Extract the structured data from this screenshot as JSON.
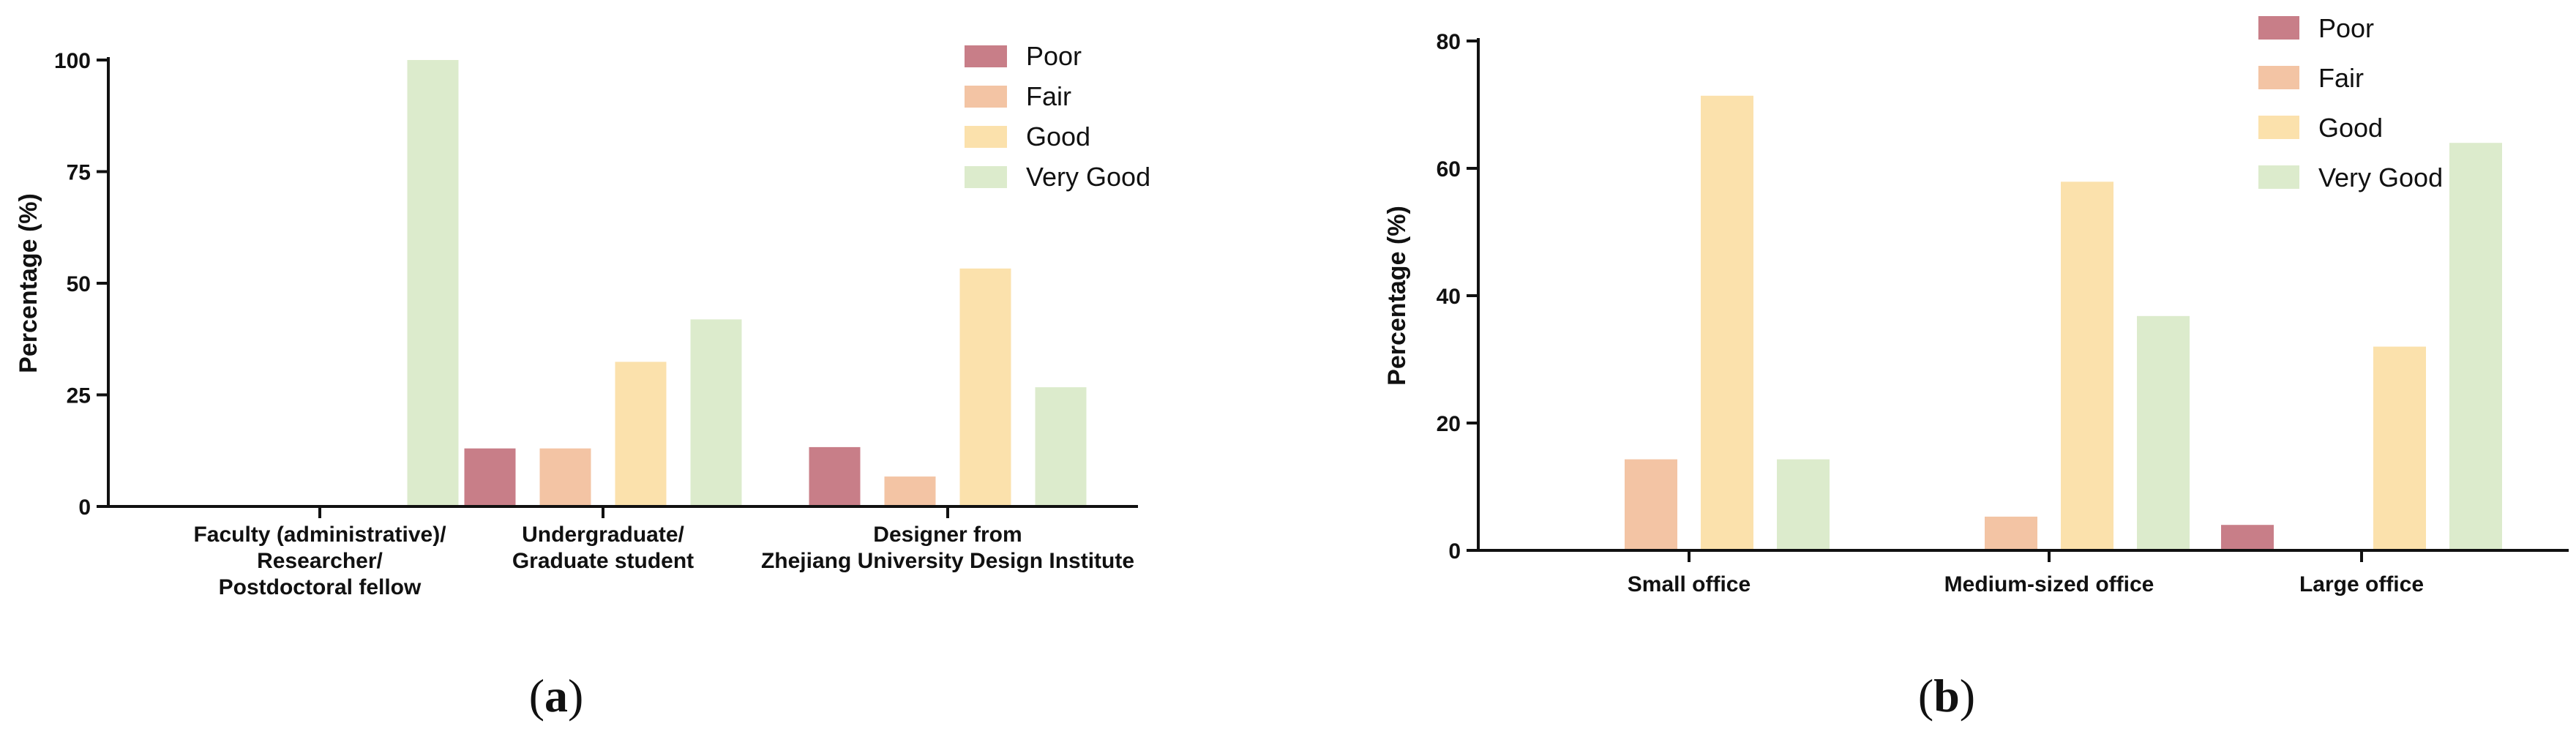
{
  "colors": {
    "Poor": "#c87e88",
    "Fair": "#f3c4a4",
    "Good": "#fbe1ac",
    "Very Good": "#dcebcc",
    "axis": "#111111"
  },
  "legend": [
    "Poor",
    "Fair",
    "Good",
    "Very Good"
  ],
  "chart_data": [
    {
      "type": "bar",
      "panel_label": "(a)",
      "categories": [
        [
          "Faculty (administrative)/",
          "Researcher/",
          "Postdoctoral fellow"
        ],
        [
          "Undergraduate/",
          "Graduate student"
        ],
        [
          "Designer from",
          "Zhejiang University Design Institute"
        ]
      ],
      "series": [
        {
          "name": "Poor",
          "values": [
            0,
            13,
            13.3
          ]
        },
        {
          "name": "Fair",
          "values": [
            0,
            13,
            6.7
          ]
        },
        {
          "name": "Good",
          "values": [
            0,
            32.4,
            53.3
          ]
        },
        {
          "name": "Very Good",
          "values": [
            100,
            41.9,
            26.7
          ]
        }
      ],
      "ylabel": "Percentage (%)",
      "ylim": [
        0,
        100
      ],
      "yticks": [
        0,
        25,
        50,
        75,
        100
      ],
      "grid": false,
      "legend_position": "top-right"
    },
    {
      "type": "bar",
      "panel_label": "(b)",
      "categories": [
        [
          "Small office"
        ],
        [
          "Medium-sized office"
        ],
        [
          "Large office"
        ]
      ],
      "series": [
        {
          "name": "Poor",
          "values": [
            0,
            0,
            4
          ]
        },
        {
          "name": "Fair",
          "values": [
            14.3,
            5.3,
            0
          ]
        },
        {
          "name": "Good",
          "values": [
            71.4,
            57.9,
            32
          ]
        },
        {
          "name": "Very Good",
          "values": [
            14.3,
            36.8,
            64
          ]
        }
      ],
      "ylabel": "Percentage (%)",
      "ylim": [
        0,
        80
      ],
      "yticks": [
        0,
        20,
        40,
        60,
        80
      ],
      "grid": false,
      "legend_position": "top-right"
    }
  ]
}
